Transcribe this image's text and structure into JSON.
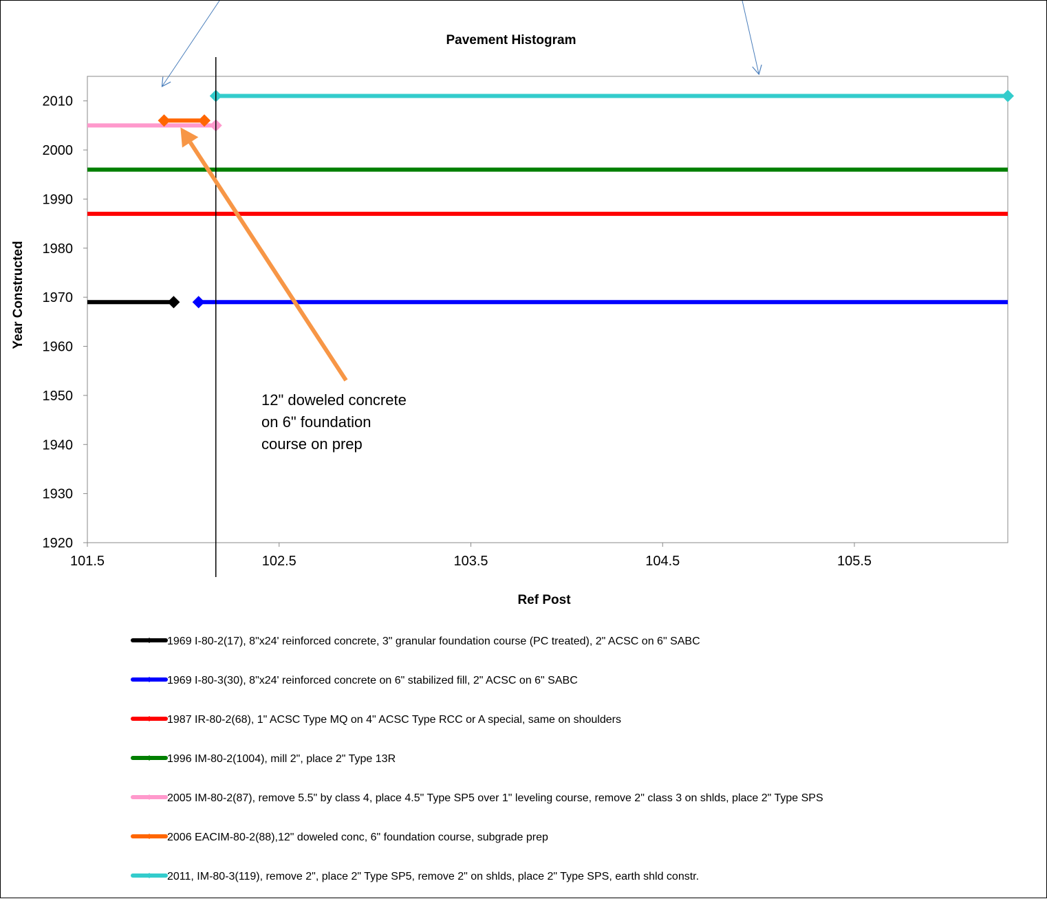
{
  "chart_data": {
    "type": "line",
    "title": "Pavement Histogram",
    "xlabel": "Ref Post",
    "ylabel": "Year Constructed",
    "xlim": [
      101.5,
      106.3
    ],
    "ylim": [
      1920,
      2015
    ],
    "x_ticks": [
      101.5,
      102.5,
      103.5,
      104.5,
      105.5
    ],
    "y_ticks": [
      1920,
      1930,
      1940,
      1950,
      1960,
      1970,
      1980,
      1990,
      2000,
      2010
    ],
    "grid": false,
    "legend_position": "bottom",
    "series": [
      {
        "name": "1969 I-80-2(17), 8\"x24' reinforced concrete, 3\" granular foundation course (PC treated), 2\" ACSC on 6\" SABC",
        "color": "#000000",
        "x": [
          101.5,
          101.95
        ],
        "y": [
          1969,
          1969
        ],
        "markers": [
          101.95
        ]
      },
      {
        "name": "1969 I-80-3(30), 8\"x24' reinforced concrete on 6\" stabilized fill, 2\" ACSC on 6\" SABC",
        "color": "#0000ff",
        "x": [
          102.08,
          106.3
        ],
        "y": [
          1969,
          1969
        ],
        "markers": [
          102.08
        ]
      },
      {
        "name": "1987 IR-80-2(68), 1\" ACSC Type MQ on 4\" ACSC Type RCC or A special, same on shoulders",
        "color": "#ff0000",
        "x": [
          101.5,
          106.3
        ],
        "y": [
          1987,
          1987
        ],
        "markers": []
      },
      {
        "name": "1996 IM-80-2(1004), mill 2\", place 2\" Type 13R",
        "color": "#007f00",
        "x": [
          101.5,
          106.3
        ],
        "y": [
          1996,
          1996
        ],
        "markers": []
      },
      {
        "name": "2005 IM-80-2(87), remove 5.5\" by class 4, place 4.5\" Type SP5 over 1\" leveling course, remove 2\" class 3 on shlds, place 2\" Type SPS",
        "color": "#ff99cc",
        "x": [
          101.5,
          102.17
        ],
        "y": [
          2005,
          2005
        ],
        "markers": [
          102.17
        ]
      },
      {
        "name": "2006 EACIM-80-2(88),12\" doweled conc, 6\" foundation course, subgrade prep",
        "color": "#ff6600",
        "x": [
          101.9,
          102.11
        ],
        "y": [
          2006,
          2006
        ],
        "markers": [
          101.9,
          102.11
        ]
      },
      {
        "name": "2011, IM-80-3(119), remove 2\", place 2\" Type SP5, remove 2\" on shlds, place 2\" Type SPS, earth shld constr.",
        "color": "#33cccc",
        "x": [
          102.17,
          106.3
        ],
        "y": [
          2011,
          2011
        ],
        "markers": [
          102.17,
          106.3
        ]
      }
    ],
    "annotations": [
      {
        "text_lines": [
          "12\" doweled concrete",
          "on 6\" foundation",
          "course on prep"
        ],
        "arrow_to": [
          102.0,
          2006
        ],
        "color": "#f79646"
      }
    ],
    "reference_line": {
      "x": 102.17
    }
  }
}
